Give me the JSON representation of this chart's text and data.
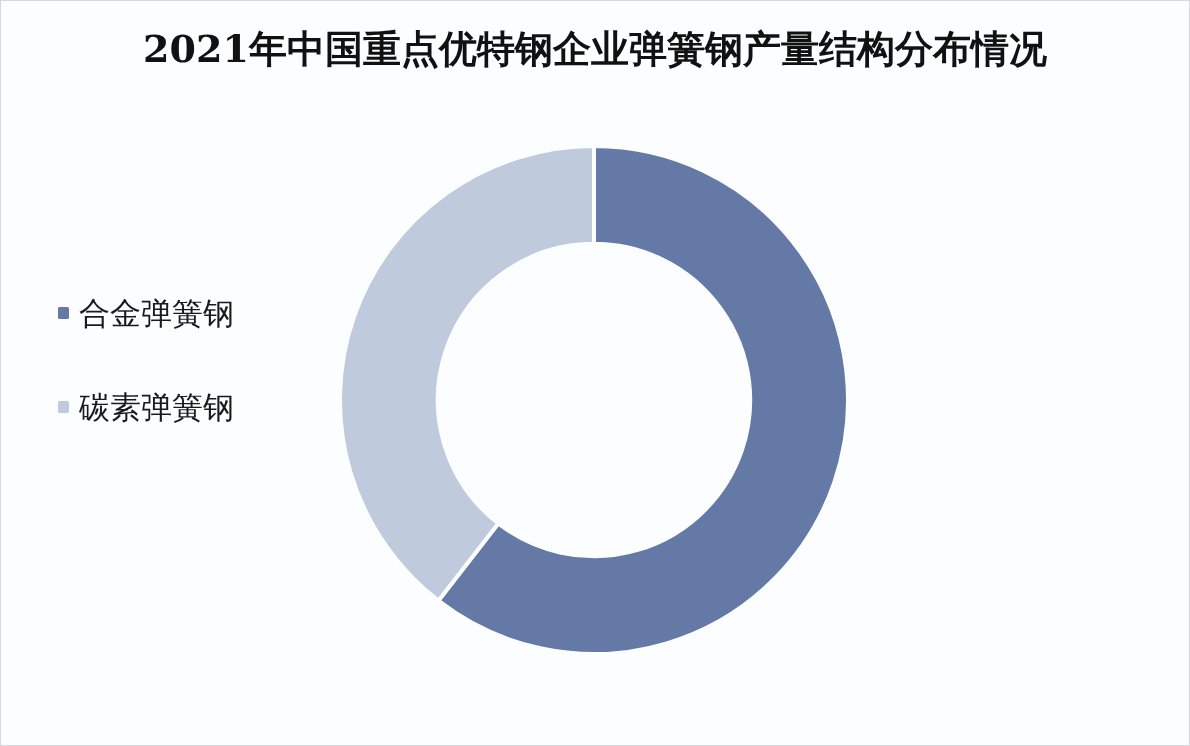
{
  "chart_data": {
    "type": "donut",
    "title": "2021年中国重点优特钢企业弹簧钢产量结构分布情况",
    "categories": [
      "合金弹簧钢",
      "碳素弹簧钢"
    ],
    "values": [
      60.5,
      39.5
    ],
    "colors": [
      "#6479a5",
      "#bfcadc"
    ],
    "legend": "left"
  }
}
